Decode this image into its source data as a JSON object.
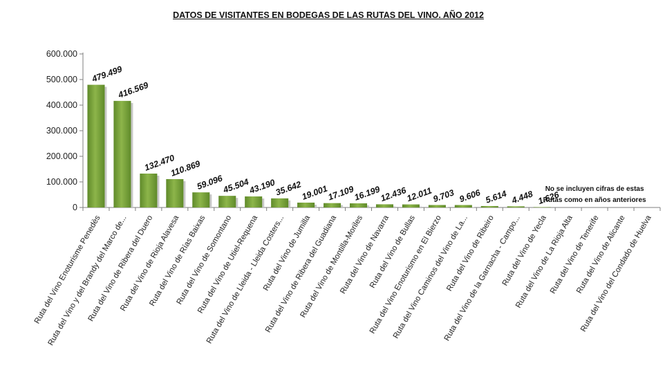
{
  "chart_data": {
    "type": "bar",
    "title": "DATOS DE VISITANTES EN BODEGAS DE LAS RUTAS DEL VINO. AÑO 2012",
    "xlabel": "",
    "ylabel": "",
    "ylim": [
      0,
      600000
    ],
    "yticks": [
      0,
      100000,
      200000,
      300000,
      400000,
      500000,
      600000
    ],
    "ytick_labels": [
      "0",
      "100.000",
      "200.000",
      "300.000",
      "400.000",
      "500.000",
      "600.000"
    ],
    "categories": [
      "Ruta del Vino Enoturisme Penedès",
      "Ruta del Vino y del Brandy del Marco de...",
      "Ruta del Vino de Ribera del Duero",
      "Ruta del Vino de Rioja Alavesa",
      "Ruta del Vino de Rías Baixas",
      "Ruta del Vino de Somontano",
      "Ruta del Vino de Utiel-Requena",
      "Ruta del Vino de Lleida - Lleida Costers...",
      "Ruta del Vino de Jumilla",
      "Ruta del Vino de Ribera del Guadiana",
      "Ruta del Vino de Montilla-Moriles",
      "Ruta del Vino de Navarra",
      "Ruta del Vino de Bullas",
      "Ruta del Vino Enoturismo en El Bierzo",
      "Ruta del Vino Caminos del Vino de La...",
      "Ruta del Vino de Ribeiro",
      "Ruta del Vino de la Garnacha - Campo...",
      "Ruta del Vino de Yecla",
      "Ruta del Vino de La Rioja Alta",
      "Ruta del Vino de Tenerife",
      "Ruta del Vino de Alicante",
      "Ruta del Vino del Condado de Huelva"
    ],
    "values": [
      479499,
      416569,
      132470,
      110869,
      59096,
      45504,
      43190,
      35642,
      19001,
      17109,
      16199,
      12436,
      12011,
      9703,
      9606,
      5614,
      4448,
      1626,
      null,
      null,
      null,
      null
    ],
    "data_labels": [
      "479.499",
      "416.569",
      "132.470",
      "110.869",
      "59.096",
      "45.504",
      "43.190",
      "35.642",
      "19.001",
      "17.109",
      "16.199",
      "12.436",
      "12.011",
      "9.703",
      "9.606",
      "5.614",
      "4.448",
      "1.626",
      "",
      "",
      "",
      ""
    ],
    "annotation_lines": [
      "No se incluyen cifras de estas",
      "Rutas como en años anteriores"
    ],
    "bar_color": "#8db54a",
    "bar_color_dark": "#5f8a2a",
    "grid": false,
    "legend": "none"
  }
}
